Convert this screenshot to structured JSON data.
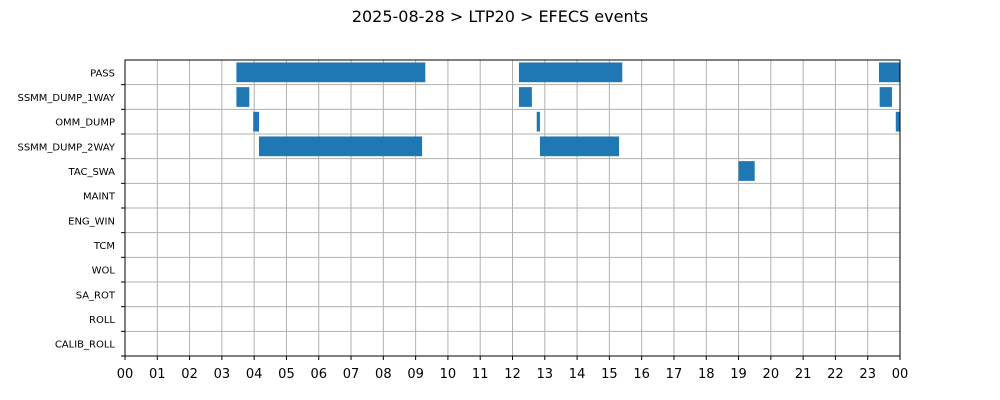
{
  "chart_data": {
    "type": "bar",
    "orientation": "horizontal-timeline",
    "title": "2025-08-28 > LTP20 > EFECS events",
    "xlabel": "",
    "ylabel": "",
    "xlim": [
      0,
      24
    ],
    "x_ticks": [
      "00",
      "01",
      "02",
      "03",
      "04",
      "05",
      "06",
      "07",
      "08",
      "09",
      "10",
      "11",
      "12",
      "13",
      "14",
      "15",
      "16",
      "17",
      "18",
      "19",
      "20",
      "21",
      "22",
      "23",
      "00"
    ],
    "grid": true,
    "bar_color": "#1f77b4",
    "categories": [
      "PASS",
      "SSMM_DUMP_1WAY",
      "OMM_DUMP",
      "SSMM_DUMP_2WAY",
      "TAC_SWA",
      "MAINT",
      "ENG_WIN",
      "TCM",
      "WOL",
      "SA_ROT",
      "ROLL",
      "CALIB_ROLL"
    ],
    "series": [
      {
        "category": "PASS",
        "intervals": [
          [
            3.45,
            9.3
          ],
          [
            12.2,
            15.4
          ],
          [
            23.35,
            24.0
          ]
        ]
      },
      {
        "category": "SSMM_DUMP_1WAY",
        "intervals": [
          [
            3.45,
            3.85
          ],
          [
            12.2,
            12.6
          ],
          [
            23.37,
            23.75
          ]
        ]
      },
      {
        "category": "OMM_DUMP",
        "intervals": [
          [
            3.97,
            4.15
          ],
          [
            12.75,
            12.85
          ],
          [
            23.87,
            24.0
          ]
        ]
      },
      {
        "category": "SSMM_DUMP_2WAY",
        "intervals": [
          [
            4.15,
            9.2
          ],
          [
            12.85,
            15.3
          ]
        ]
      },
      {
        "category": "TAC_SWA",
        "intervals": [
          [
            19.0,
            19.5
          ]
        ]
      },
      {
        "category": "MAINT",
        "intervals": []
      },
      {
        "category": "ENG_WIN",
        "intervals": []
      },
      {
        "category": "TCM",
        "intervals": []
      },
      {
        "category": "WOL",
        "intervals": []
      },
      {
        "category": "SA_ROT",
        "intervals": []
      },
      {
        "category": "ROLL",
        "intervals": []
      },
      {
        "category": "CALIB_ROLL",
        "intervals": []
      }
    ]
  }
}
